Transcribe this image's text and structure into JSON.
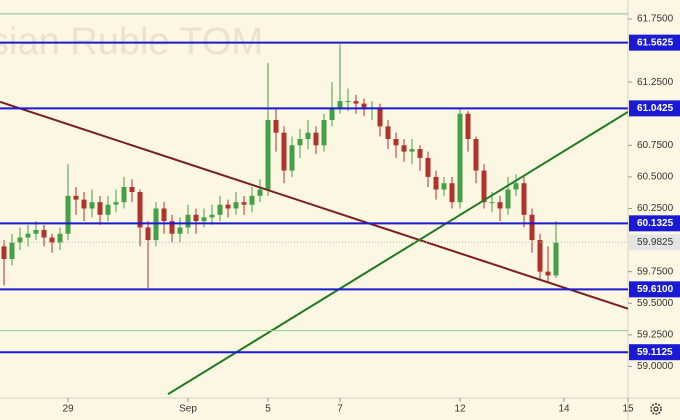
{
  "chart_data": {
    "type": "candlestick",
    "watermark": "sian Ruble TOM",
    "up_color": "#43a047",
    "down_color": "#b0322a",
    "open": [
      59.95,
      59.85,
      59.98,
      60.02,
      60.05,
      60.08,
      60.02,
      59.98,
      60.05,
      60.35,
      60.32,
      60.25,
      60.3,
      60.2,
      60.28,
      60.3,
      60.42,
      60.38,
      60.1,
      60.0,
      60.25,
      60.15,
      60.05,
      60.1,
      60.2,
      60.15,
      60.18,
      60.2,
      60.28,
      60.25,
      60.3,
      60.28,
      60.35,
      60.4,
      60.95,
      60.85,
      60.55,
      60.75,
      60.8,
      60.85,
      60.75,
      60.95,
      61.05,
      61.1,
      61.1,
      61.08,
      61.05,
      61.05,
      60.9,
      60.8,
      60.75,
      60.7,
      60.72,
      60.65,
      60.5,
      60.4,
      60.45,
      60.3,
      61.0,
      60.8,
      60.55,
      60.3,
      60.3,
      60.25,
      60.4,
      60.45,
      60.2,
      60.0,
      59.75,
      59.72
    ],
    "high": [
      60.0,
      60.05,
      60.1,
      60.12,
      60.15,
      60.12,
      60.05,
      60.1,
      60.6,
      60.42,
      60.38,
      60.4,
      60.35,
      60.35,
      60.4,
      60.5,
      60.48,
      60.4,
      60.15,
      60.3,
      60.3,
      60.2,
      60.18,
      60.28,
      60.25,
      60.25,
      60.28,
      60.35,
      60.32,
      60.38,
      60.35,
      60.42,
      60.48,
      61.4,
      61.05,
      60.9,
      60.82,
      60.88,
      60.95,
      60.9,
      61.0,
      61.25,
      61.55,
      61.2,
      61.15,
      61.12,
      61.1,
      61.08,
      60.95,
      60.85,
      60.8,
      60.8,
      60.75,
      60.7,
      60.55,
      60.5,
      60.5,
      61.05,
      61.02,
      60.82,
      60.6,
      60.38,
      60.35,
      60.5,
      60.52,
      60.5,
      60.25,
      60.05,
      59.95,
      60.15
    ],
    "low": [
      59.64,
      59.8,
      59.92,
      59.95,
      60.0,
      59.95,
      59.9,
      59.92,
      60.0,
      60.2,
      60.15,
      60.18,
      60.12,
      60.15,
      60.22,
      60.25,
      60.3,
      59.95,
      59.62,
      59.95,
      60.05,
      59.98,
      59.98,
      60.05,
      60.05,
      60.1,
      60.12,
      60.15,
      60.18,
      60.2,
      60.2,
      60.22,
      60.3,
      60.35,
      60.7,
      60.45,
      60.5,
      60.65,
      60.72,
      60.68,
      60.7,
      60.9,
      61.0,
      61.02,
      61.0,
      60.98,
      60.95,
      60.82,
      60.72,
      60.65,
      60.62,
      60.6,
      60.55,
      60.42,
      60.32,
      60.35,
      60.25,
      60.25,
      60.7,
      60.45,
      60.25,
      60.22,
      60.15,
      60.2,
      60.35,
      60.1,
      59.9,
      59.68,
      59.66,
      59.7
    ],
    "close": [
      59.85,
      59.98,
      60.02,
      60.05,
      60.08,
      60.02,
      59.98,
      60.05,
      60.35,
      60.32,
      60.25,
      60.3,
      60.2,
      60.28,
      60.3,
      60.42,
      60.38,
      60.1,
      60.0,
      60.25,
      60.15,
      60.05,
      60.1,
      60.2,
      60.15,
      60.18,
      60.2,
      60.28,
      60.25,
      60.3,
      60.28,
      60.35,
      60.4,
      60.95,
      60.85,
      60.55,
      60.75,
      60.8,
      60.85,
      60.75,
      60.95,
      61.05,
      61.1,
      61.1,
      61.08,
      61.05,
      61.05,
      60.9,
      60.8,
      60.75,
      60.7,
      60.72,
      60.65,
      60.5,
      60.4,
      60.45,
      60.3,
      61.0,
      60.8,
      60.55,
      60.3,
      60.3,
      60.25,
      60.4,
      60.45,
      60.2,
      60.0,
      59.75,
      59.72,
      59.98
    ],
    "levels": [
      {
        "value": 61.5625,
        "color": "#1a1ad4"
      },
      {
        "value": 61.0425,
        "color": "#1a1ad4"
      },
      {
        "value": 60.1325,
        "color": "#1a1ad4"
      },
      {
        "value": 59.61,
        "label": "59.6100",
        "color": "#1a1ad4"
      },
      {
        "value": 59.1125,
        "color": "#1a1ad4"
      }
    ],
    "current_price": 59.9825,
    "thin_lines": [
      {
        "value": 61.79,
        "color": "#7fbf9f"
      },
      {
        "value": 59.283,
        "color": "#8fd08f"
      }
    ],
    "trend_lines": [
      {
        "x": [
          -0.5,
          78
        ],
        "y": [
          61.094,
          59.457
        ],
        "color": "#7b1e1e"
      },
      {
        "x": [
          20.5,
          78
        ],
        "y": [
          58.78,
          61.015
        ],
        "color": "#1e7a1e"
      }
    ],
    "xlim": [
      -0.5,
      78.5
    ],
    "ylim": [
      58.75,
      61.9
    ],
    "xticks": [
      {
        "value": 8,
        "label": "29"
      },
      {
        "value": 23,
        "label": "Sep"
      },
      {
        "value": 33,
        "label": "5"
      },
      {
        "value": 42,
        "label": "7"
      },
      {
        "value": 57,
        "label": "12"
      },
      {
        "value": 70,
        "label": "14"
      },
      {
        "value": 78,
        "label": "15"
      }
    ],
    "yticks": [
      {
        "value": 61.75,
        "label": "61.7500"
      },
      {
        "value": 61.25,
        "label": "61.2500"
      },
      {
        "value": 60.75,
        "label": "60.7500"
      },
      {
        "value": 60.5,
        "label": "60.5000"
      },
      {
        "value": 60.25,
        "label": "60.2500"
      },
      {
        "value": 59.75,
        "label": "59.7500"
      },
      {
        "value": 59.5,
        "label": "59.5000"
      },
      {
        "value": 59.25,
        "label": "59.2500"
      },
      {
        "value": 59.0,
        "label": "59.0000"
      }
    ]
  }
}
